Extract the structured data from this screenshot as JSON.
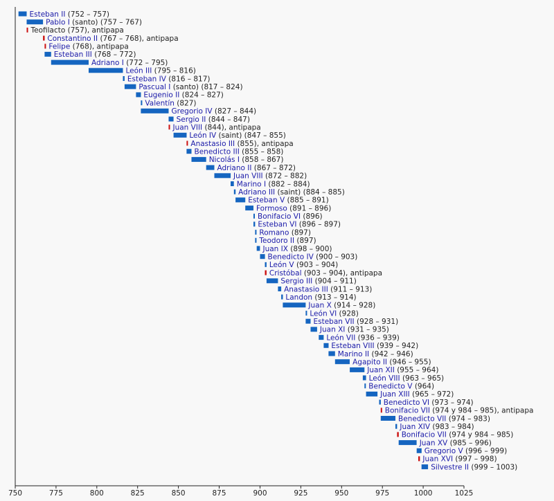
{
  "chart_data": {
    "type": "timeline",
    "title": "",
    "xlabel": "",
    "ylabel": "",
    "xlim": [
      750,
      1025
    ],
    "x_ticks": [
      750,
      775,
      800,
      825,
      850,
      875,
      900,
      925,
      950,
      975,
      1000,
      1025
    ],
    "colors": {
      "pope": "#1565c0",
      "antipope": "#cc1111",
      "link": "#1a1aa8",
      "text": "#222222"
    },
    "entries": [
      {
        "name": "Esteban II",
        "rest": " (752 – 757)",
        "start": 752,
        "end": 757,
        "kind": "pope"
      },
      {
        "name": "Pablo I",
        "rest": " (santo) (757 – 767)",
        "start": 757,
        "end": 767,
        "kind": "pope"
      },
      {
        "name": "",
        "rest": "Teofilacto (757), antipapa",
        "start": 757,
        "end": 757.3,
        "kind": "antipope"
      },
      {
        "name": "Constantino II",
        "rest": " (767 – 768), antipapa",
        "start": 767,
        "end": 768,
        "kind": "antipope"
      },
      {
        "name": "Felipe",
        "rest": " (768), antipapa",
        "start": 768,
        "end": 768.3,
        "kind": "antipope"
      },
      {
        "name": "Esteban III",
        "rest": " (768 – 772)",
        "start": 768,
        "end": 772,
        "kind": "pope"
      },
      {
        "name": "Adriano I",
        "rest": " (772 – 795)",
        "start": 772,
        "end": 795,
        "kind": "pope"
      },
      {
        "name": "León III",
        "rest": " (795 – 816)",
        "start": 795,
        "end": 816,
        "kind": "pope"
      },
      {
        "name": "Esteban IV",
        "rest": " (816 – 817)",
        "start": 816,
        "end": 817,
        "kind": "pope"
      },
      {
        "name": "Pascual I",
        "rest": " (santo) (817 – 824)",
        "start": 817,
        "end": 824,
        "kind": "pope"
      },
      {
        "name": "Eugenio II",
        "rest": " (824 – 827)",
        "start": 824,
        "end": 827,
        "kind": "pope"
      },
      {
        "name": "Valentín",
        "rest": " (827)",
        "start": 827,
        "end": 827.4,
        "kind": "pope"
      },
      {
        "name": "Gregorio IV",
        "rest": " (827 – 844)",
        "start": 827,
        "end": 844,
        "kind": "pope"
      },
      {
        "name": "Sergio II",
        "rest": " (844 – 847)",
        "start": 844,
        "end": 847,
        "kind": "pope"
      },
      {
        "name": "Juan VIII",
        "rest": " (844), antipapa",
        "start": 844,
        "end": 844.3,
        "kind": "antipope"
      },
      {
        "name": "León IV",
        "rest": " (saint) (847 – 855)",
        "start": 847,
        "end": 855,
        "kind": "pope"
      },
      {
        "name": "Anastasio III",
        "rest": " (855), antipapa",
        "start": 855,
        "end": 855.3,
        "kind": "antipope"
      },
      {
        "name": "Benedicto III",
        "rest": " (855 – 858)",
        "start": 855,
        "end": 858,
        "kind": "pope"
      },
      {
        "name": "Nicolás I",
        "rest": " (858 – 867)",
        "start": 858,
        "end": 867,
        "kind": "pope"
      },
      {
        "name": "Adriano II",
        "rest": " (867 – 872)",
        "start": 867,
        "end": 872,
        "kind": "pope"
      },
      {
        "name": "Juan VIII",
        "rest": " (872 – 882)",
        "start": 872,
        "end": 882,
        "kind": "pope"
      },
      {
        "name": "Marino I",
        "rest": " (882 – 884)",
        "start": 882,
        "end": 884,
        "kind": "pope"
      },
      {
        "name": "Adriano III",
        "rest": " (saint) (884 – 885)",
        "start": 884,
        "end": 885,
        "kind": "pope"
      },
      {
        "name": "Esteban V",
        "rest": " (885 – 891)",
        "start": 885,
        "end": 891,
        "kind": "pope"
      },
      {
        "name": "Formoso",
        "rest": " (891 – 896)",
        "start": 891,
        "end": 896,
        "kind": "pope"
      },
      {
        "name": "Bonifacio VI",
        "rest": " (896)",
        "start": 896,
        "end": 896.4,
        "kind": "pope"
      },
      {
        "name": "Esteban VI",
        "rest": " (896 – 897)",
        "start": 896,
        "end": 897,
        "kind": "pope"
      },
      {
        "name": "Romano",
        "rest": " (897)",
        "start": 897,
        "end": 897.4,
        "kind": "pope"
      },
      {
        "name": "Teodoro II",
        "rest": " (897)",
        "start": 897,
        "end": 897.4,
        "kind": "pope"
      },
      {
        "name": "Juan IX",
        "rest": " (898 – 900)",
        "start": 898,
        "end": 900,
        "kind": "pope"
      },
      {
        "name": "Benedicto IV",
        "rest": " (900 – 903)",
        "start": 900,
        "end": 903,
        "kind": "pope"
      },
      {
        "name": "León V",
        "rest": " (903 – 904)",
        "start": 903,
        "end": 904,
        "kind": "pope"
      },
      {
        "name": "Cristóbal",
        "rest": " (903 – 904), antipapa",
        "start": 903,
        "end": 904,
        "kind": "antipope"
      },
      {
        "name": "Sergio III",
        "rest": " (904 – 911)",
        "start": 904,
        "end": 911,
        "kind": "pope"
      },
      {
        "name": "Anastasio III",
        "rest": " (911 – 913)",
        "start": 911,
        "end": 913,
        "kind": "pope"
      },
      {
        "name": "Landon",
        "rest": " (913 – 914)",
        "start": 913,
        "end": 914,
        "kind": "pope"
      },
      {
        "name": "Juan X",
        "rest": " (914 – 928)",
        "start": 914,
        "end": 928,
        "kind": "pope"
      },
      {
        "name": "León VI",
        "rest": " (928)",
        "start": 928,
        "end": 928.4,
        "kind": "pope"
      },
      {
        "name": "Esteban VII",
        "rest": " (928 – 931)",
        "start": 928,
        "end": 931,
        "kind": "pope"
      },
      {
        "name": "Juan XI",
        "rest": " (931 – 935)",
        "start": 931,
        "end": 935,
        "kind": "pope"
      },
      {
        "name": "León VII",
        "rest": " (936 – 939)",
        "start": 936,
        "end": 939,
        "kind": "pope"
      },
      {
        "name": "Esteban VIII",
        "rest": " (939 – 942)",
        "start": 939,
        "end": 942,
        "kind": "pope"
      },
      {
        "name": "Marino II",
        "rest": " (942 – 946)",
        "start": 942,
        "end": 946,
        "kind": "pope"
      },
      {
        "name": "Agapito II",
        "rest": " (946 – 955)",
        "start": 946,
        "end": 955,
        "kind": "pope"
      },
      {
        "name": "Juan XII",
        "rest": " (955 – 964)",
        "start": 955,
        "end": 964,
        "kind": "pope"
      },
      {
        "name": "León VIII",
        "rest": " (963 – 965)",
        "start": 963,
        "end": 965,
        "kind": "pope"
      },
      {
        "name": "Benedicto V",
        "rest": " (964)",
        "start": 964,
        "end": 964.4,
        "kind": "pope"
      },
      {
        "name": "Juan XIII",
        "rest": " (965 – 972)",
        "start": 965,
        "end": 972,
        "kind": "pope"
      },
      {
        "name": "Benedicto VI",
        "rest": " (973 – 974)",
        "start": 973,
        "end": 974,
        "kind": "pope"
      },
      {
        "name": "Bonifacio VII",
        "rest": " (974 y 984 – 985), antipapa",
        "start": 974,
        "end": 974.3,
        "kind": "antipope"
      },
      {
        "name": "Benedicto VII",
        "rest": " (974 – 983)",
        "start": 974,
        "end": 983,
        "kind": "pope"
      },
      {
        "name": "Juan XIV",
        "rest": " (983 – 984)",
        "start": 983,
        "end": 984,
        "kind": "pope"
      },
      {
        "name": "Bonifacio VII",
        "rest": " (974 y 984 – 985)",
        "start": 984,
        "end": 985,
        "kind": "antipope"
      },
      {
        "name": "Juan XV",
        "rest": " (985 – 996)",
        "start": 985,
        "end": 996,
        "kind": "pope"
      },
      {
        "name": "Gregorio V",
        "rest": " (996 – 999)",
        "start": 996,
        "end": 999,
        "kind": "pope"
      },
      {
        "name": "Juan XVI",
        "rest": " (997 – 998)",
        "start": 997,
        "end": 998,
        "kind": "antipope"
      },
      {
        "name": "Silvestre II",
        "rest": " (999 – 1003)",
        "start": 999,
        "end": 1003,
        "kind": "pope"
      }
    ]
  }
}
